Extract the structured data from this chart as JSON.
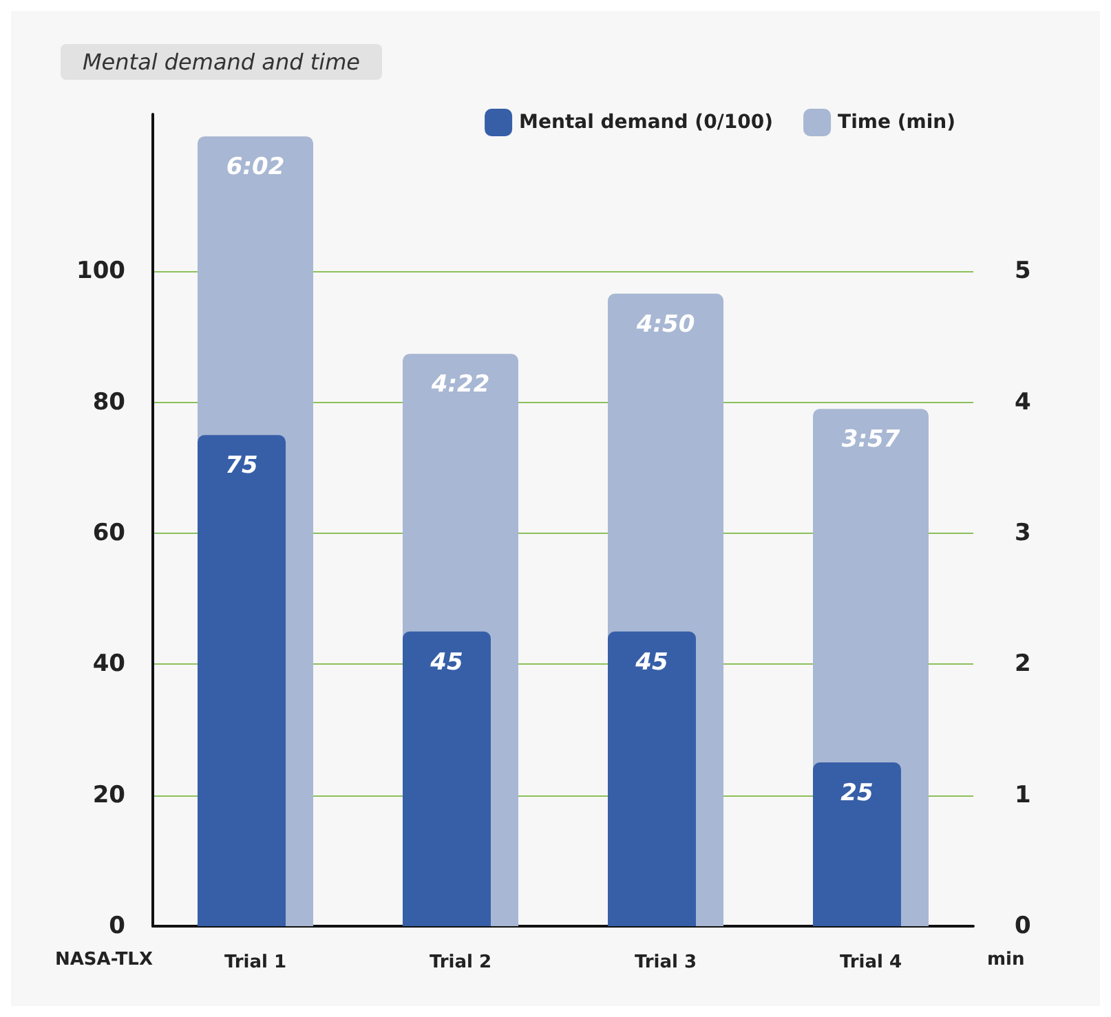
{
  "chart_data": {
    "type": "bar",
    "title": "Mental demand and time",
    "ylabel": "NASA-TLX",
    "y2label": "min",
    "categories": [
      "Trial 1",
      "Trial 2",
      "Trial 3",
      "Trial 4"
    ],
    "series": [
      {
        "name": "Mental demand (0/100)",
        "color": "#375fa8",
        "values": [
          75,
          45,
          45,
          25
        ],
        "value_labels": [
          "75",
          "45",
          "45",
          "25"
        ]
      },
      {
        "name": "Time (min)",
        "color": "#a8b7d3",
        "axis": "y2",
        "values": [
          6.03,
          4.37,
          4.83,
          3.95
        ],
        "value_labels": [
          "6:02",
          "4:22",
          "4:50",
          "3:57"
        ]
      }
    ],
    "ylim": [
      0,
      124
    ],
    "yticks": [
      0,
      20,
      40,
      60,
      80,
      100
    ],
    "y2lim": [
      0,
      6.2
    ],
    "y2ticks": [
      0,
      1,
      2,
      3,
      4,
      5
    ],
    "grid": "y",
    "legend": "top right"
  }
}
